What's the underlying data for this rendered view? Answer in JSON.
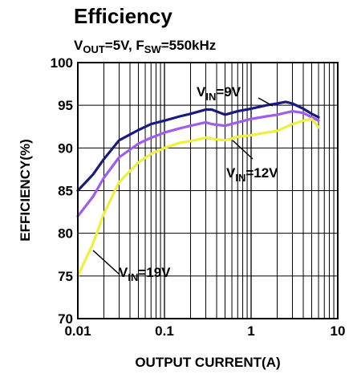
{
  "chart_data": {
    "type": "line",
    "title": "Efficiency",
    "subtitle": {
      "vout_main": "V",
      "vout_sub": "OUT",
      "vout_val": "=5V, ",
      "fsw_main": "F",
      "fsw_sub": "SW",
      "fsw_val": "=550kHz"
    },
    "xlabel": "OUTPUT CURRENT(A)",
    "ylabel": "EFFICIENCY(%)",
    "x_scale": "log",
    "xlim": [
      0.01,
      10
    ],
    "ylim": [
      70,
      100
    ],
    "x_ticks": [
      {
        "value": 0.01,
        "label": "0.01"
      },
      {
        "value": 0.1,
        "label": "0.1"
      },
      {
        "value": 1,
        "label": "1"
      },
      {
        "value": 10,
        "label": "10"
      }
    ],
    "y_ticks": [
      {
        "value": 70,
        "label": "70"
      },
      {
        "value": 75,
        "label": "75"
      },
      {
        "value": 80,
        "label": "80"
      },
      {
        "value": 85,
        "label": "85"
      },
      {
        "value": 90,
        "label": "90"
      },
      {
        "value": 95,
        "label": "95"
      },
      {
        "value": 100,
        "label": "100"
      }
    ],
    "grid": true,
    "series": [
      {
        "key": "vin9",
        "color": "#1a1a80",
        "label": {
          "main": "V",
          "sub": "IN",
          "val": "=9V"
        },
        "x": [
          0.01,
          0.015,
          0.02,
          0.03,
          0.05,
          0.07,
          0.1,
          0.15,
          0.2,
          0.3,
          0.35,
          0.5,
          0.7,
          1,
          1.5,
          2,
          2.5,
          3,
          4,
          5,
          6
        ],
        "y": [
          85,
          86.9,
          88.7,
          90.9,
          92.1,
          92.8,
          93.2,
          93.7,
          94.0,
          94.5,
          94.5,
          93.9,
          94.3,
          94.6,
          95.0,
          95.2,
          95.4,
          95.2,
          94.6,
          94.0,
          93.6
        ]
      },
      {
        "key": "vin12",
        "color": "#a05cf0",
        "label": {
          "main": "V",
          "sub": "IN",
          "val": "=12V"
        },
        "x": [
          0.01,
          0.015,
          0.02,
          0.03,
          0.05,
          0.07,
          0.1,
          0.15,
          0.2,
          0.3,
          0.35,
          0.5,
          0.7,
          1,
          1.5,
          2,
          3,
          4,
          5,
          6
        ],
        "y": [
          82,
          84.3,
          86.5,
          88.9,
          90.5,
          91.2,
          91.8,
          92.3,
          92.6,
          93.0,
          92.8,
          92.6,
          93.0,
          93.4,
          93.7,
          93.9,
          94.3,
          94.1,
          93.6,
          93.2
        ]
      },
      {
        "key": "vin19",
        "color": "#eef03a",
        "label": {
          "main": "V",
          "sub": "IN",
          "val": "=19V"
        },
        "x": [
          0.01,
          0.015,
          0.02,
          0.03,
          0.05,
          0.07,
          0.1,
          0.15,
          0.2,
          0.3,
          0.4,
          0.5,
          0.7,
          1,
          1.5,
          2,
          3,
          4,
          5,
          6
        ],
        "y": [
          75,
          78.8,
          82.3,
          86.0,
          88.3,
          89.3,
          90.0,
          90.6,
          90.8,
          91.2,
          91.0,
          90.9,
          91.3,
          91.5,
          91.8,
          92.0,
          92.8,
          93.2,
          93.4,
          92.4
        ]
      }
    ]
  }
}
